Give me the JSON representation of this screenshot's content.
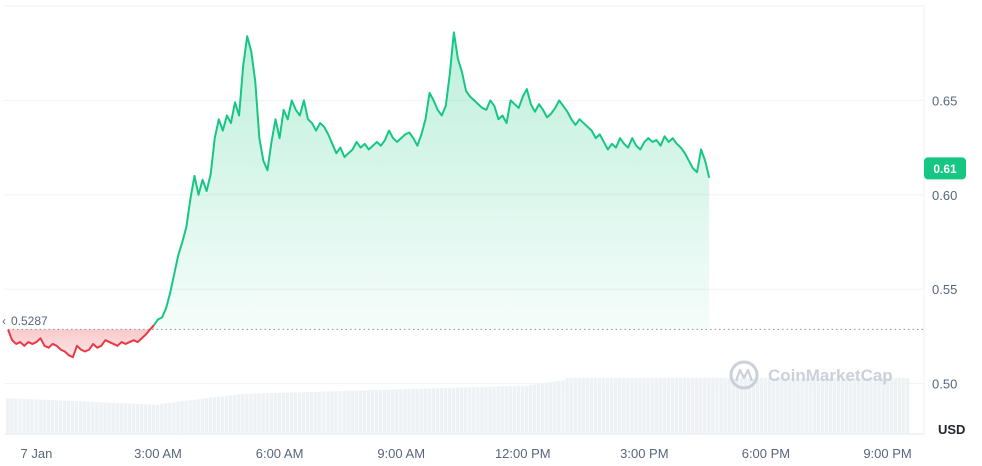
{
  "chart_data": {
    "type": "area",
    "unit_label": "USD",
    "watermark": "CoinMarketCap",
    "reference_label": "0.5287",
    "reference_value": 0.5287,
    "current_value_label": "0.61",
    "current_value": 0.614,
    "ylim": [
      0.4733,
      0.7
    ],
    "xlim": [
      -0.8,
      21.9
    ],
    "y_ticks": [
      {
        "value": 0.5,
        "label": "0.50"
      },
      {
        "value": 0.55,
        "label": "0.55"
      },
      {
        "value": 0.6,
        "label": "0.60"
      },
      {
        "value": 0.65,
        "label": "0.65"
      }
    ],
    "x_ticks": [
      {
        "value": 0,
        "label": "7 Jan"
      },
      {
        "value": 3,
        "label": "3:00 AM"
      },
      {
        "value": 6,
        "label": "6:00 AM"
      },
      {
        "value": 9,
        "label": "9:00 AM"
      },
      {
        "value": 12,
        "label": "12:00 PM"
      },
      {
        "value": 15,
        "label": "3:00 PM"
      },
      {
        "value": 18,
        "label": "6:00 PM"
      },
      {
        "value": 21,
        "label": "9:00 PM"
      }
    ],
    "x_unit": "hours since 7 Jan 00:00",
    "colors": {
      "up": "#16c784",
      "down": "#ea3943",
      "grid": "#eff2f5",
      "volume": "#eff2f5",
      "badge": "#16c784"
    },
    "series": [
      {
        "points": [
          [
            -0.7,
            0.5286
          ],
          [
            -0.6,
            0.523
          ],
          [
            -0.5,
            0.521
          ],
          [
            -0.4,
            0.522
          ],
          [
            -0.3,
            0.52
          ],
          [
            -0.2,
            0.522
          ],
          [
            -0.1,
            0.521
          ],
          [
            0.0,
            0.522
          ],
          [
            0.1,
            0.524
          ],
          [
            0.2,
            0.52
          ],
          [
            0.3,
            0.519
          ],
          [
            0.4,
            0.521
          ],
          [
            0.5,
            0.52
          ],
          [
            0.6,
            0.518
          ],
          [
            0.7,
            0.517
          ],
          [
            0.8,
            0.515
          ],
          [
            0.9,
            0.514
          ],
          [
            1.0,
            0.52
          ],
          [
            1.1,
            0.518
          ],
          [
            1.2,
            0.517
          ],
          [
            1.3,
            0.518
          ],
          [
            1.4,
            0.521
          ],
          [
            1.5,
            0.519
          ],
          [
            1.6,
            0.52
          ],
          [
            1.7,
            0.523
          ],
          [
            1.8,
            0.522
          ],
          [
            1.9,
            0.521
          ],
          [
            2.0,
            0.52
          ],
          [
            2.1,
            0.522
          ],
          [
            2.2,
            0.521
          ],
          [
            2.3,
            0.522
          ],
          [
            2.4,
            0.523
          ],
          [
            2.5,
            0.522
          ],
          [
            2.6,
            0.524
          ],
          [
            2.7,
            0.526
          ],
          [
            2.8,
            0.5286
          ],
          [
            2.9,
            0.531
          ],
          [
            3.0,
            0.534
          ],
          [
            3.1,
            0.535
          ],
          [
            3.2,
            0.54
          ],
          [
            3.3,
            0.548
          ],
          [
            3.4,
            0.558
          ],
          [
            3.5,
            0.568
          ],
          [
            3.6,
            0.575
          ],
          [
            3.7,
            0.583
          ],
          [
            3.8,
            0.598
          ],
          [
            3.9,
            0.61
          ],
          [
            4.0,
            0.6
          ],
          [
            4.1,
            0.608
          ],
          [
            4.2,
            0.602
          ],
          [
            4.3,
            0.611
          ],
          [
            4.4,
            0.63
          ],
          [
            4.5,
            0.64
          ],
          [
            4.6,
            0.634
          ],
          [
            4.7,
            0.642
          ],
          [
            4.8,
            0.638
          ],
          [
            4.9,
            0.649
          ],
          [
            5.0,
            0.642
          ],
          [
            5.1,
            0.668
          ],
          [
            5.2,
            0.684
          ],
          [
            5.3,
            0.676
          ],
          [
            5.4,
            0.66
          ],
          [
            5.5,
            0.63
          ],
          [
            5.6,
            0.618
          ],
          [
            5.7,
            0.613
          ],
          [
            5.8,
            0.628
          ],
          [
            5.9,
            0.64
          ],
          [
            6.0,
            0.63
          ],
          [
            6.1,
            0.645
          ],
          [
            6.2,
            0.64
          ],
          [
            6.3,
            0.65
          ],
          [
            6.4,
            0.645
          ],
          [
            6.5,
            0.642
          ],
          [
            6.6,
            0.65
          ],
          [
            6.7,
            0.64
          ],
          [
            6.8,
            0.638
          ],
          [
            6.9,
            0.634
          ],
          [
            7.0,
            0.638
          ],
          [
            7.1,
            0.636
          ],
          [
            7.2,
            0.632
          ],
          [
            7.3,
            0.627
          ],
          [
            7.4,
            0.622
          ],
          [
            7.5,
            0.625
          ],
          [
            7.6,
            0.62
          ],
          [
            7.7,
            0.622
          ],
          [
            7.8,
            0.624
          ],
          [
            7.9,
            0.628
          ],
          [
            8.0,
            0.625
          ],
          [
            8.1,
            0.627
          ],
          [
            8.2,
            0.624
          ],
          [
            8.3,
            0.626
          ],
          [
            8.4,
            0.628
          ],
          [
            8.5,
            0.626
          ],
          [
            8.6,
            0.629
          ],
          [
            8.7,
            0.634
          ],
          [
            8.8,
            0.63
          ],
          [
            8.9,
            0.628
          ],
          [
            9.0,
            0.63
          ],
          [
            9.1,
            0.632
          ],
          [
            9.2,
            0.633
          ],
          [
            9.3,
            0.63
          ],
          [
            9.4,
            0.626
          ],
          [
            9.5,
            0.632
          ],
          [
            9.6,
            0.64
          ],
          [
            9.7,
            0.654
          ],
          [
            9.8,
            0.65
          ],
          [
            9.9,
            0.645
          ],
          [
            10.0,
            0.642
          ],
          [
            10.1,
            0.647
          ],
          [
            10.2,
            0.664
          ],
          [
            10.3,
            0.686
          ],
          [
            10.4,
            0.672
          ],
          [
            10.5,
            0.665
          ],
          [
            10.6,
            0.655
          ],
          [
            10.7,
            0.652
          ],
          [
            10.8,
            0.65
          ],
          [
            10.9,
            0.648
          ],
          [
            11.0,
            0.646
          ],
          [
            11.1,
            0.645
          ],
          [
            11.2,
            0.65
          ],
          [
            11.3,
            0.647
          ],
          [
            11.4,
            0.64
          ],
          [
            11.5,
            0.642
          ],
          [
            11.6,
            0.638
          ],
          [
            11.7,
            0.65
          ],
          [
            11.8,
            0.648
          ],
          [
            11.9,
            0.646
          ],
          [
            12.0,
            0.652
          ],
          [
            12.1,
            0.656
          ],
          [
            12.2,
            0.648
          ],
          [
            12.3,
            0.644
          ],
          [
            12.4,
            0.648
          ],
          [
            12.5,
            0.645
          ],
          [
            12.6,
            0.641
          ],
          [
            12.7,
            0.643
          ],
          [
            12.8,
            0.646
          ],
          [
            12.9,
            0.65
          ],
          [
            13.0,
            0.647
          ],
          [
            13.1,
            0.644
          ],
          [
            13.2,
            0.64
          ],
          [
            13.3,
            0.637
          ],
          [
            13.4,
            0.64
          ],
          [
            13.5,
            0.638
          ],
          [
            13.6,
            0.636
          ],
          [
            13.7,
            0.634
          ],
          [
            13.8,
            0.63
          ],
          [
            13.9,
            0.632
          ],
          [
            14.0,
            0.628
          ],
          [
            14.1,
            0.624
          ],
          [
            14.2,
            0.627
          ],
          [
            14.3,
            0.625
          ],
          [
            14.4,
            0.63
          ],
          [
            14.5,
            0.627
          ],
          [
            14.6,
            0.625
          ],
          [
            14.7,
            0.63
          ],
          [
            14.8,
            0.626
          ],
          [
            14.9,
            0.624
          ],
          [
            15.0,
            0.628
          ],
          [
            15.1,
            0.63
          ],
          [
            15.2,
            0.628
          ],
          [
            15.3,
            0.629
          ],
          [
            15.4,
            0.626
          ],
          [
            15.5,
            0.631
          ],
          [
            15.6,
            0.628
          ],
          [
            15.7,
            0.63
          ],
          [
            15.8,
            0.627
          ],
          [
            15.9,
            0.625
          ],
          [
            16.0,
            0.622
          ],
          [
            16.1,
            0.618
          ],
          [
            16.2,
            0.614
          ],
          [
            16.3,
            0.612
          ],
          [
            16.4,
            0.624
          ],
          [
            16.5,
            0.618
          ],
          [
            16.6,
            0.609
          ]
        ]
      }
    ]
  }
}
